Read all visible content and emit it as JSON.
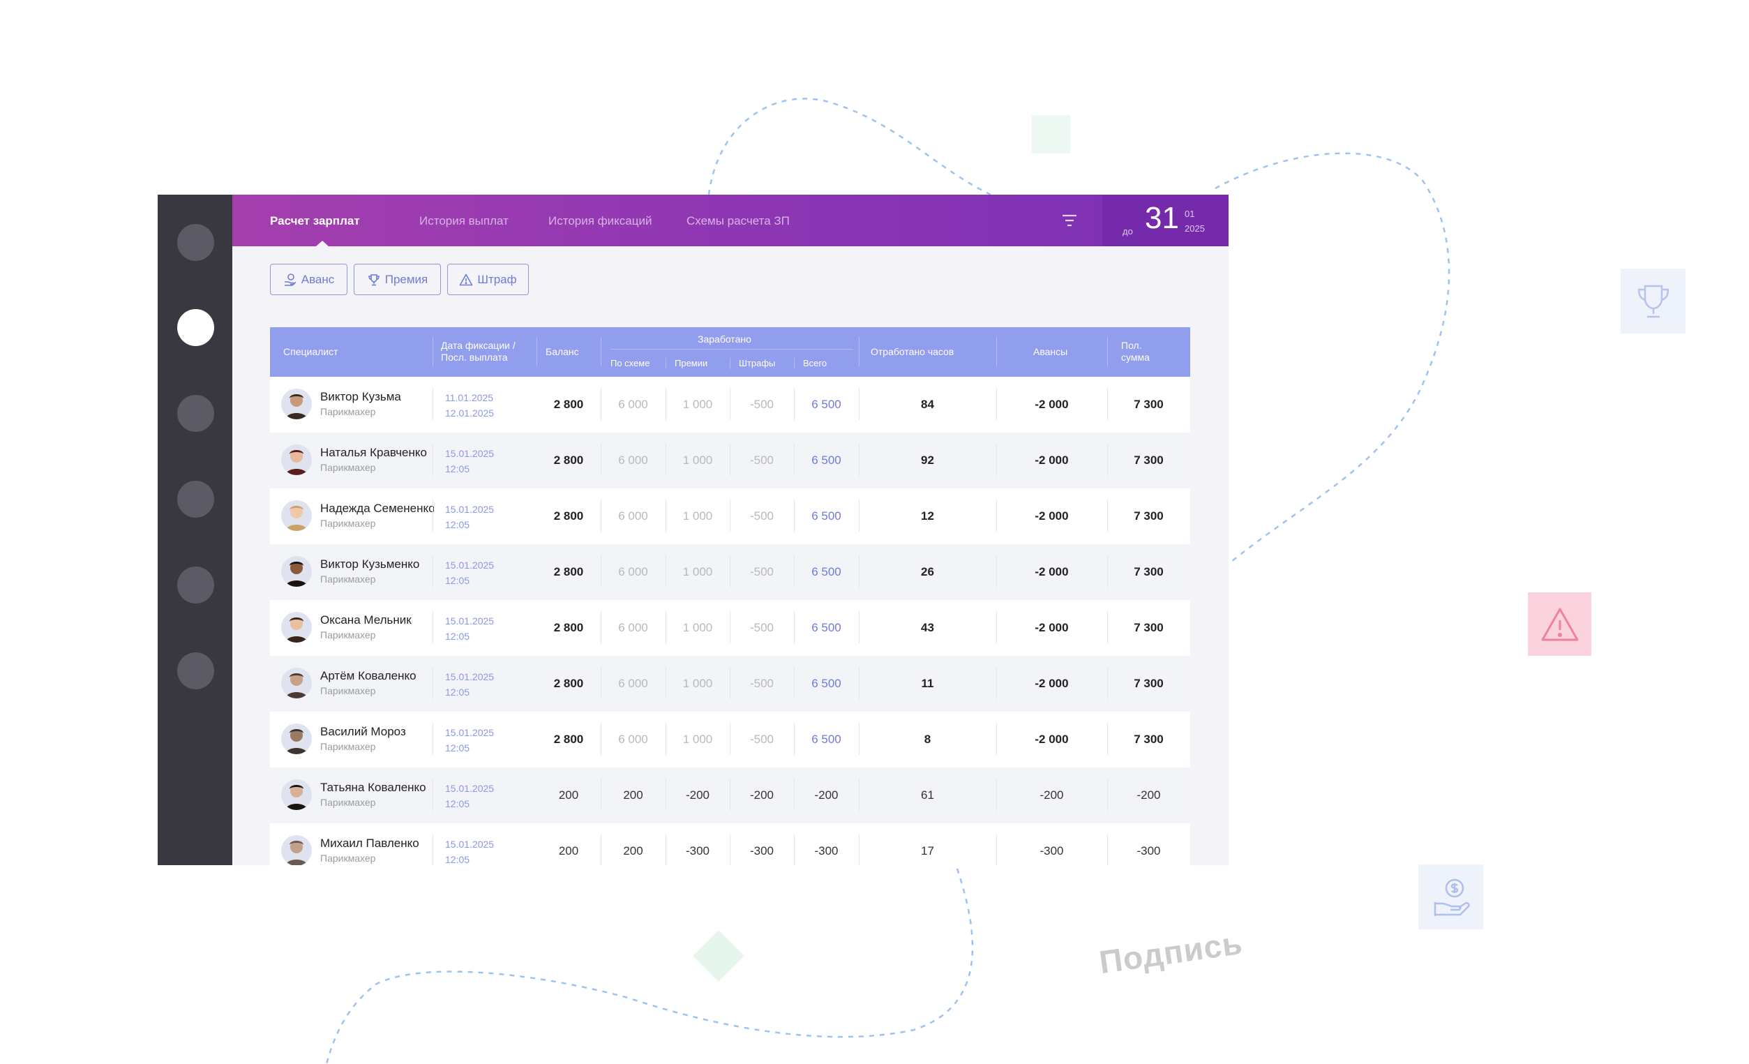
{
  "tabs": [
    {
      "label": "Расчет зарплат",
      "active": true
    },
    {
      "label": "История выплат",
      "active": false
    },
    {
      "label": "История фиксаций",
      "active": false
    },
    {
      "label": "Схемы расчета ЗП",
      "active": false
    }
  ],
  "date": {
    "prefix": "до",
    "day": "31",
    "month": "01",
    "year": "2025"
  },
  "actions": {
    "advance": "Аванс",
    "bonus": "Премия",
    "fine": "Штраф"
  },
  "header": {
    "specialist": "Специалист",
    "fix_date_1": "Дата фиксации /",
    "fix_date_2": "Посл. выплата",
    "balance": "Баланс",
    "earned": "Заработано",
    "by_scheme": "По схеме",
    "bonuses": "Премии",
    "fines": "Штрафы",
    "total": "Всего",
    "hours": "Отработано часов",
    "advances": "Авансы",
    "pay_1": "Пол.",
    "pay_2": "сумма"
  },
  "rows": [
    {
      "name": "Виктор Кузьма",
      "role": "Парикмахер",
      "date1": "11.01.2025",
      "date2": "12.01.2025",
      "balance": "2 800",
      "scheme": "6 000",
      "bonus": "1 000",
      "fine": "-500",
      "total": "6 500",
      "hours": "84",
      "advance": "-2 000",
      "pay": "7 300"
    },
    {
      "name": "Наталья Кравченко",
      "role": "Парикмахер",
      "date1": "15.01.2025",
      "date2": "12:05",
      "balance": "2 800",
      "scheme": "6 000",
      "bonus": "1 000",
      "fine": "-500",
      "total": "6 500",
      "hours": "92",
      "advance": "-2 000",
      "pay": "7 300"
    },
    {
      "name": "Надежда Семененко",
      "role": "Парикмахер",
      "date1": "15.01.2025",
      "date2": "12:05",
      "balance": "2 800",
      "scheme": "6 000",
      "bonus": "1 000",
      "fine": "-500",
      "total": "6 500",
      "hours": "12",
      "advance": "-2 000",
      "pay": "7 300"
    },
    {
      "name": "Виктор Кузьменко",
      "role": "Парикмахер",
      "date1": "15.01.2025",
      "date2": "12:05",
      "balance": "2 800",
      "scheme": "6 000",
      "bonus": "1 000",
      "fine": "-500",
      "total": "6 500",
      "hours": "26",
      "advance": "-2 000",
      "pay": "7 300"
    },
    {
      "name": "Оксана Мельник",
      "role": "Парикмахер",
      "date1": "15.01.2025",
      "date2": "12:05",
      "balance": "2 800",
      "scheme": "6 000",
      "bonus": "1 000",
      "fine": "-500",
      "total": "6 500",
      "hours": "43",
      "advance": "-2 000",
      "pay": "7 300"
    },
    {
      "name": "Артём Коваленко",
      "role": "Парикмахер",
      "date1": "15.01.2025",
      "date2": "12:05",
      "balance": "2 800",
      "scheme": "6 000",
      "bonus": "1 000",
      "fine": "-500",
      "total": "6 500",
      "hours": "11",
      "advance": "-2 000",
      "pay": "7 300"
    },
    {
      "name": "Василий Мороз",
      "role": "Парикмахер",
      "date1": "15.01.2025",
      "date2": "12:05",
      "balance": "2 800",
      "scheme": "6 000",
      "bonus": "1 000",
      "fine": "-500",
      "total": "6 500",
      "hours": "8",
      "advance": "-2 000",
      "pay": "7 300"
    },
    {
      "name": "Татьяна Коваленко",
      "role": "Парикмахер",
      "date1": "15.01.2025",
      "date2": "12:05",
      "balance": "200",
      "scheme": "200",
      "bonus": "-200",
      "fine": "-200",
      "total": "-200",
      "hours": "61",
      "advance": "-200",
      "pay": "-200"
    },
    {
      "name": "Михаил Павленко",
      "role": "Парикмахер",
      "date1": "15.01.2025",
      "date2": "12:05",
      "balance": "200",
      "scheme": "200",
      "bonus": "-300",
      "fine": "-300",
      "total": "-300",
      "hours": "17",
      "advance": "-300",
      "pay": "-300"
    }
  ],
  "signature": "Подпись",
  "colors": {
    "accent": "#6e7bd8",
    "header_bg": "#919ded",
    "topbar_start": "#a43fae",
    "topbar_end": "#7a2fb4",
    "sidebar": "#393841"
  }
}
